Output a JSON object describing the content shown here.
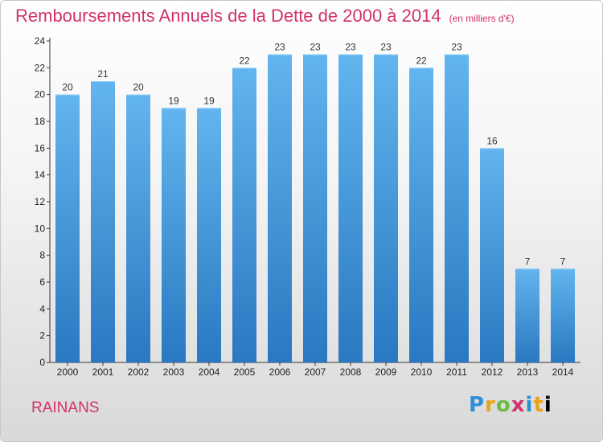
{
  "title": "Remboursements Annuels de la Dette de 2000 à 2014",
  "subtitle": "(en milliers d'€)",
  "city": "RAINANS",
  "logo": "Proxiti",
  "colors": {
    "accent": "#d2316e",
    "bar_top": "#62b5ee",
    "bar_bottom": "#2a78c1"
  },
  "chart_data": {
    "type": "bar",
    "title": "Remboursements Annuels de la Dette de 2000 à 2014",
    "subtitle": "(en milliers d'€)",
    "categories": [
      "2000",
      "2001",
      "2002",
      "2003",
      "2004",
      "2005",
      "2006",
      "2007",
      "2008",
      "2009",
      "2010",
      "2011",
      "2012",
      "2013",
      "2014"
    ],
    "values": [
      20,
      21,
      20,
      19,
      19,
      22,
      23,
      23,
      23,
      23,
      22,
      23,
      16,
      7,
      7
    ],
    "ylim": [
      0,
      24
    ],
    "yticks": [
      0,
      2,
      4,
      6,
      8,
      10,
      12,
      14,
      16,
      18,
      20,
      22,
      24
    ],
    "grid": false
  }
}
